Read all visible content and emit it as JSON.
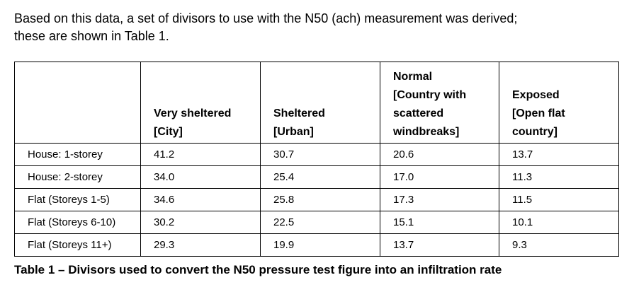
{
  "paragraph": {
    "lines": [
      "Based on this data, a set of divisors to use with the N50 (ach) measurement was derived;",
      "these are shown in Table 1."
    ]
  },
  "table": {
    "header": [
      [
        "Very sheltered",
        "[City]"
      ],
      [
        "Sheltered",
        "[Urban]"
      ],
      [
        "Normal",
        "[Country with",
        "scattered",
        "windbreaks]"
      ],
      [
        "Exposed",
        "[Open flat",
        "country]"
      ]
    ],
    "rows": [
      [
        "House: 1-storey",
        "41.2",
        "30.7",
        "20.6",
        "13.7"
      ],
      [
        "House: 2-storey",
        "34.0",
        "25.4",
        "17.0",
        "11.3"
      ],
      [
        "Flat (Storeys 1-5)",
        "34.6",
        "25.8",
        "17.3",
        "11.5"
      ],
      [
        "Flat (Storeys 6-10)",
        "30.2",
        "22.5",
        "15.1",
        "10.1"
      ],
      [
        "Flat (Storeys 11+)",
        "29.3",
        "19.9",
        "13.7",
        "9.3"
      ]
    ],
    "caption": "Table 1 – Divisors used to convert the N50 pressure test figure into an infiltration rate"
  }
}
